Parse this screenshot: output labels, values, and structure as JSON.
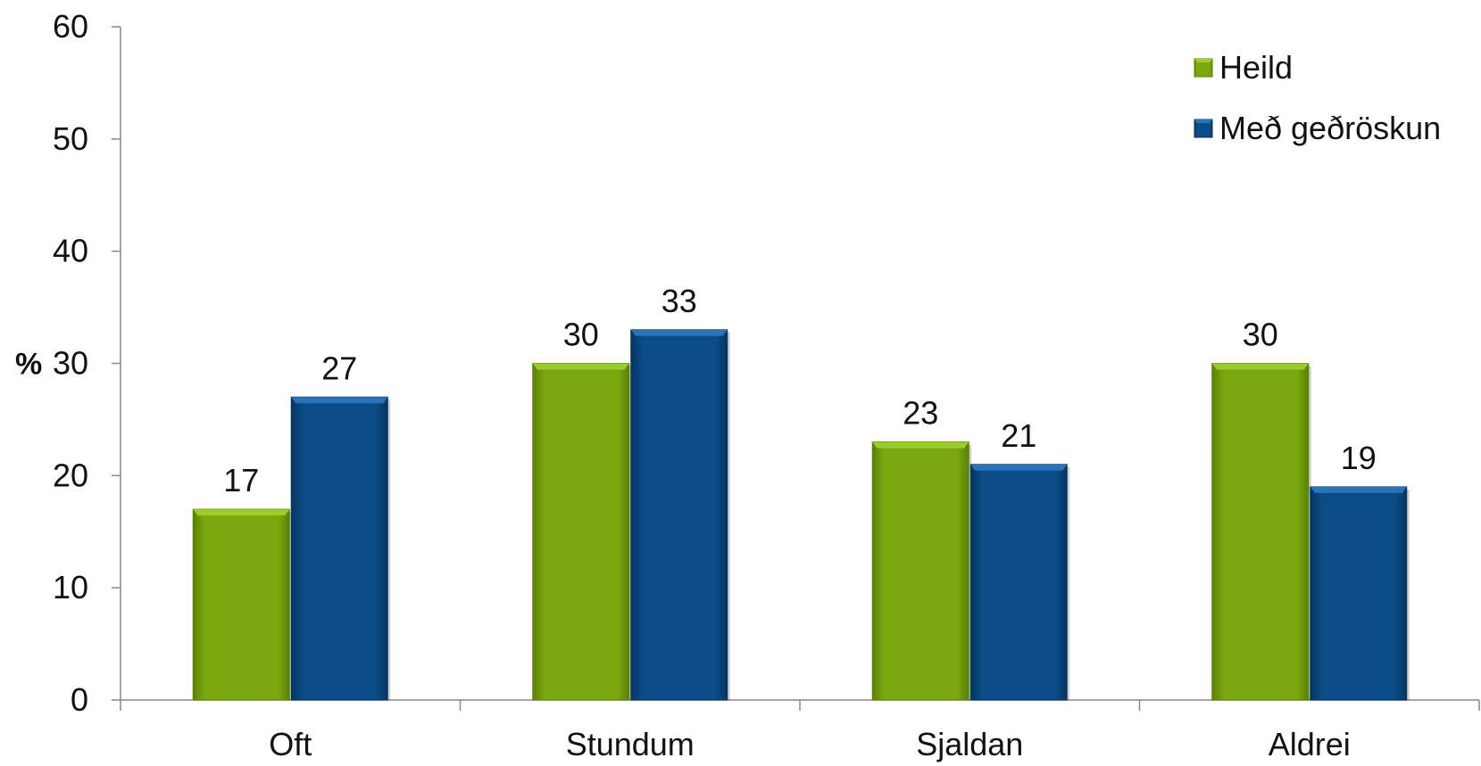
{
  "chart_data": {
    "type": "bar",
    "categories": [
      "Oft",
      "Stundum",
      "Sjaldan",
      "Aldrei"
    ],
    "series": [
      {
        "name": "Heild",
        "values": [
          17,
          30,
          23,
          30
        ],
        "color": "#7aa80e",
        "color_light": "#9ccc2a",
        "color_dark": "#5a8006"
      },
      {
        "name": "Með geðröskun",
        "values": [
          27,
          33,
          21,
          19
        ],
        "color": "#0a4c86",
        "color_light": "#2a73b8",
        "color_dark": "#063560"
      }
    ],
    "ylabel": "%",
    "xlabel": "",
    "title": "",
    "ylim": [
      0,
      60
    ],
    "yticks": [
      0,
      10,
      20,
      30,
      40,
      50,
      60
    ],
    "grid": false,
    "legend_position": "top-right",
    "axis_color": "#888888"
  }
}
